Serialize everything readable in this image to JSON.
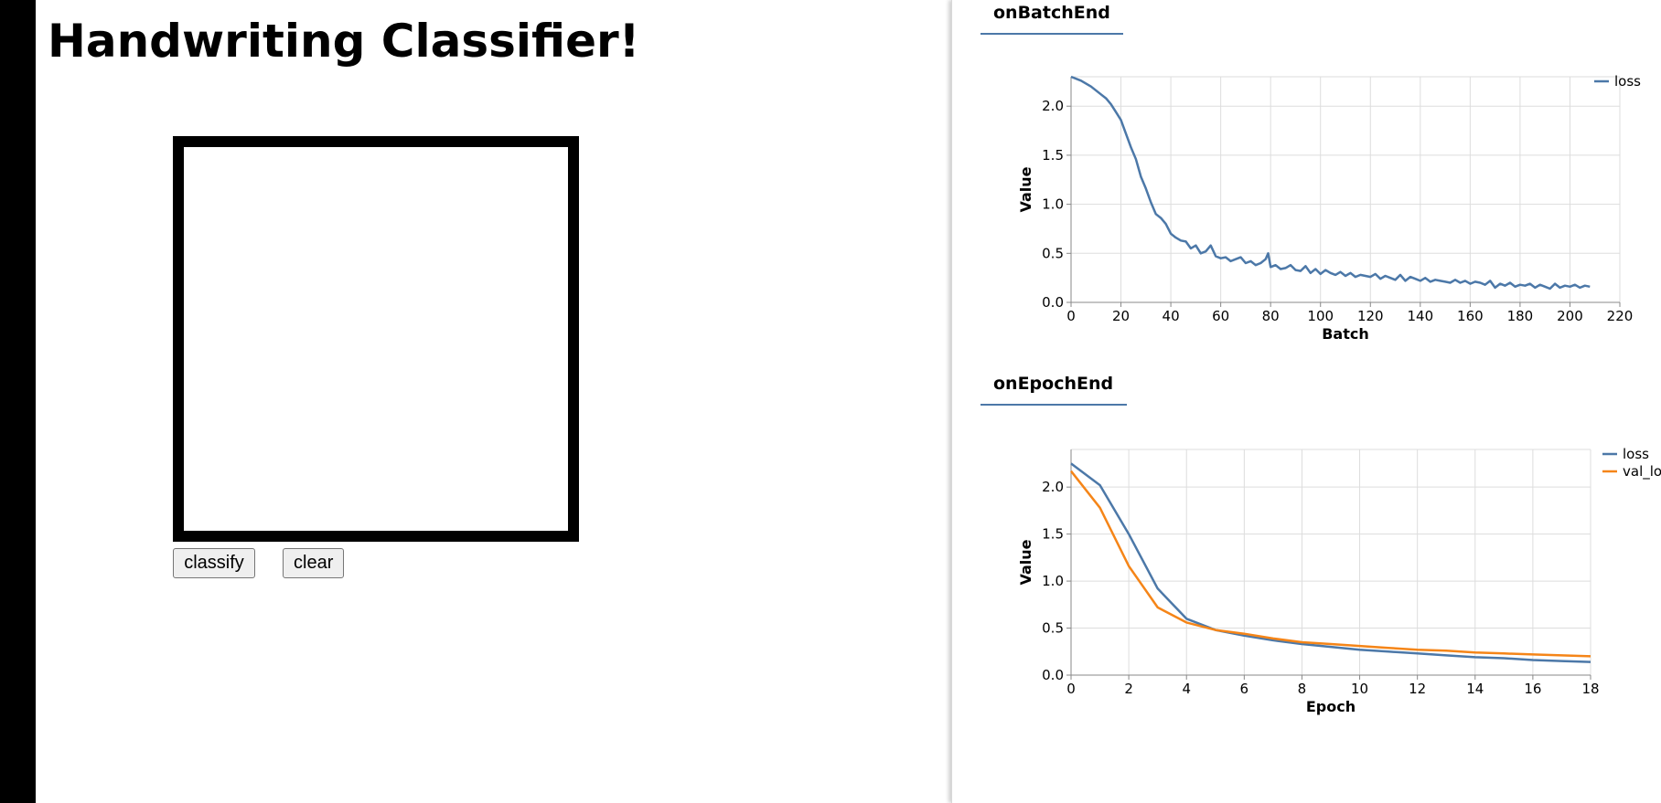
{
  "page": {
    "title": "Handwriting Classifier!"
  },
  "buttons": {
    "classify_label": "classify",
    "clear_label": "clear"
  },
  "visor": {
    "tabs": [
      {
        "label": "onBatchEnd"
      },
      {
        "label": "onEpochEnd"
      }
    ]
  },
  "colors": {
    "loss": "#4c78a8",
    "val_loss": "#f58518",
    "grid": "#dddddd"
  },
  "chart_data": [
    {
      "type": "line",
      "title": "onBatchEnd",
      "xlabel": "Batch",
      "ylabel": "Value",
      "xlim": [
        0,
        220
      ],
      "ylim": [
        0,
        2.3
      ],
      "xticks": [
        0,
        20,
        40,
        60,
        80,
        100,
        120,
        140,
        160,
        180,
        200,
        220
      ],
      "yticks": [
        0.0,
        0.5,
        1.0,
        1.5,
        2.0
      ],
      "ytick_labels": [
        "0.0",
        "0.5",
        "1.0",
        "1.5",
        "2.0"
      ],
      "grid": true,
      "legend": "top-right",
      "series": [
        {
          "name": "loss",
          "x": [
            0,
            4,
            8,
            12,
            14,
            16,
            18,
            20,
            22,
            24,
            26,
            28,
            30,
            32,
            34,
            36,
            38,
            40,
            42,
            44,
            46,
            48,
            50,
            52,
            54,
            56,
            58,
            60,
            62,
            64,
            66,
            68,
            70,
            72,
            74,
            76,
            78,
            79,
            80,
            82,
            84,
            86,
            88,
            90,
            92,
            94,
            96,
            98,
            100,
            102,
            104,
            106,
            108,
            110,
            112,
            114,
            116,
            118,
            120,
            122,
            124,
            126,
            128,
            130,
            132,
            134,
            136,
            138,
            140,
            142,
            144,
            146,
            148,
            150,
            152,
            154,
            156,
            158,
            160,
            162,
            164,
            166,
            168,
            170,
            172,
            174,
            176,
            178,
            180,
            182,
            184,
            186,
            188,
            190,
            192,
            194,
            196,
            198,
            200,
            202,
            204,
            206,
            208
          ],
          "values": [
            2.3,
            2.26,
            2.2,
            2.12,
            2.08,
            2.02,
            1.94,
            1.86,
            1.72,
            1.58,
            1.46,
            1.28,
            1.16,
            1.02,
            0.9,
            0.86,
            0.8,
            0.7,
            0.66,
            0.63,
            0.62,
            0.55,
            0.58,
            0.5,
            0.52,
            0.58,
            0.47,
            0.45,
            0.46,
            0.42,
            0.44,
            0.46,
            0.4,
            0.42,
            0.38,
            0.4,
            0.44,
            0.5,
            0.36,
            0.38,
            0.34,
            0.35,
            0.38,
            0.33,
            0.32,
            0.37,
            0.3,
            0.34,
            0.29,
            0.33,
            0.3,
            0.28,
            0.31,
            0.27,
            0.3,
            0.26,
            0.28,
            0.27,
            0.26,
            0.29,
            0.24,
            0.27,
            0.25,
            0.23,
            0.28,
            0.22,
            0.26,
            0.24,
            0.22,
            0.25,
            0.21,
            0.23,
            0.22,
            0.21,
            0.2,
            0.23,
            0.2,
            0.22,
            0.19,
            0.21,
            0.2,
            0.18,
            0.22,
            0.15,
            0.19,
            0.17,
            0.2,
            0.16,
            0.18,
            0.17,
            0.19,
            0.15,
            0.18,
            0.16,
            0.14,
            0.19,
            0.15,
            0.17,
            0.16,
            0.18,
            0.15,
            0.17,
            0.16
          ]
        }
      ]
    },
    {
      "type": "line",
      "title": "onEpochEnd",
      "xlabel": "Epoch",
      "ylabel": "Value",
      "xlim": [
        0,
        18
      ],
      "ylim": [
        0,
        2.4
      ],
      "xticks": [
        0,
        2,
        4,
        6,
        8,
        10,
        12,
        14,
        16,
        18
      ],
      "yticks": [
        0.0,
        0.5,
        1.0,
        1.5,
        2.0
      ],
      "ytick_labels": [
        "0.0",
        "0.5",
        "1.0",
        "1.5",
        "2.0"
      ],
      "grid": true,
      "legend": "top-right",
      "series": [
        {
          "name": "loss",
          "x": [
            0,
            1,
            2,
            3,
            4,
            5,
            6,
            7,
            8,
            9,
            10,
            11,
            12,
            13,
            14,
            15,
            16,
            17,
            18
          ],
          "values": [
            2.25,
            2.02,
            1.5,
            0.92,
            0.6,
            0.48,
            0.42,
            0.37,
            0.33,
            0.3,
            0.27,
            0.25,
            0.23,
            0.21,
            0.19,
            0.18,
            0.16,
            0.15,
            0.14
          ]
        },
        {
          "name": "val_loss",
          "x": [
            0,
            1,
            2,
            3,
            4,
            5,
            6,
            7,
            8,
            9,
            10,
            11,
            12,
            13,
            14,
            15,
            16,
            17,
            18
          ],
          "values": [
            2.17,
            1.78,
            1.16,
            0.72,
            0.56,
            0.48,
            0.44,
            0.39,
            0.35,
            0.33,
            0.31,
            0.29,
            0.27,
            0.26,
            0.24,
            0.23,
            0.22,
            0.21,
            0.2
          ]
        }
      ]
    }
  ]
}
